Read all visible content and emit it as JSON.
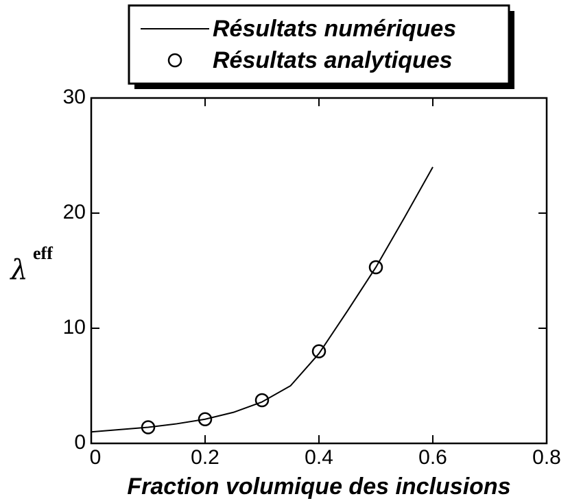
{
  "chart_data": {
    "type": "line",
    "y_label": "λ",
    "y_label_superscript": "eff",
    "x_label": "Fraction volumique des inclusions",
    "series": [
      {
        "name": "Résultats numériques",
        "color": "#000000",
        "style": "line",
        "x": [
          0,
          0.05,
          0.1,
          0.15,
          0.2,
          0.25,
          0.3,
          0.35,
          0.4,
          0.45,
          0.5,
          0.55,
          0.6
        ],
        "values": [
          1.0,
          1.2,
          1.4,
          1.7,
          2.1,
          2.7,
          3.6,
          5.0,
          7.8,
          11.5,
          15.3,
          19.6,
          24.0
        ]
      },
      {
        "name": "Résultats analytiques",
        "color": "#000000",
        "style": "markers",
        "x": [
          0.1,
          0.2,
          0.3,
          0.4,
          0.5
        ],
        "values": [
          1.4,
          2.1,
          3.75,
          8.0,
          15.3
        ]
      }
    ],
    "xlim": [
      0,
      0.8
    ],
    "xticks": [
      0,
      0.2,
      0.4,
      0.6,
      0.8
    ],
    "ylim": [
      0,
      30
    ],
    "yticks": [
      0,
      10,
      20,
      30
    ],
    "grid": false
  }
}
